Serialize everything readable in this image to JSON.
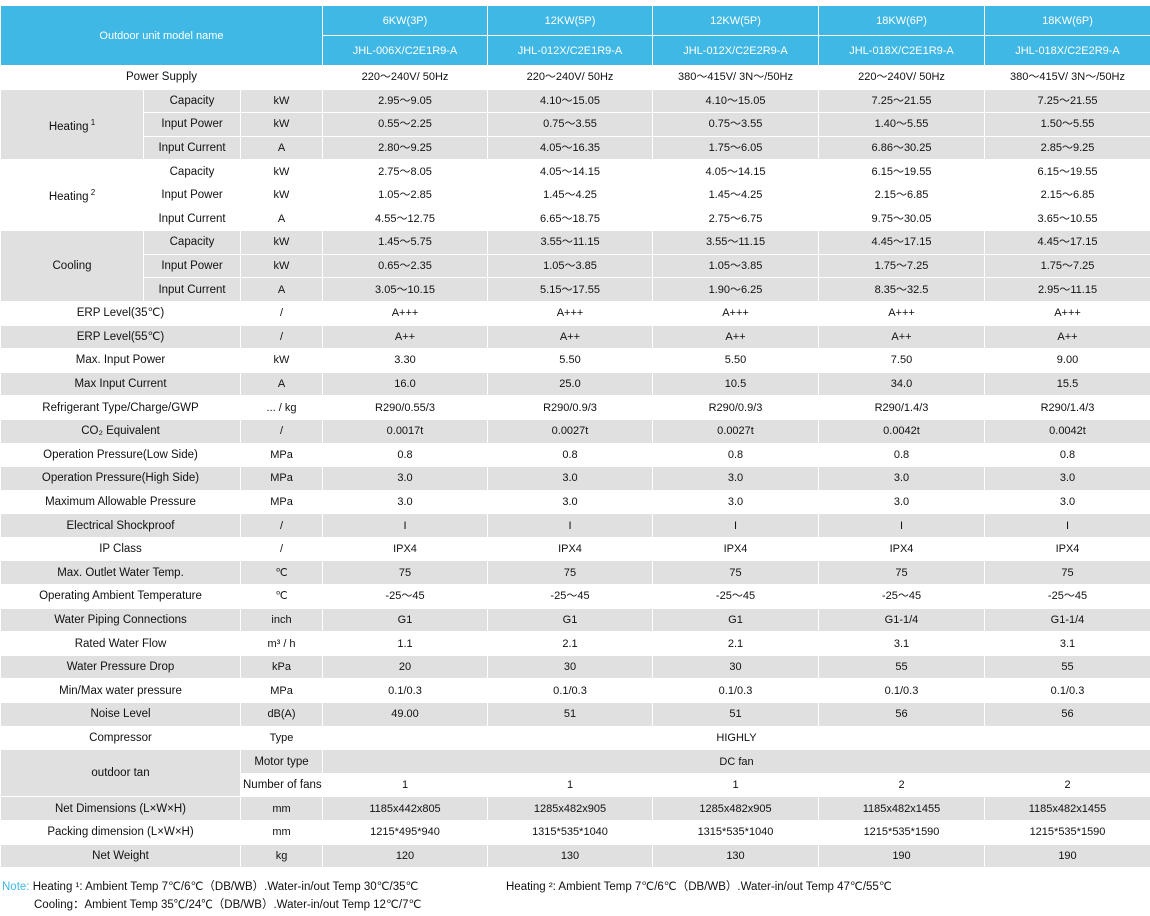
{
  "colors": {
    "header_blue": "#3fb8e6",
    "row_gray": "#e0e0e0",
    "row_white": "#ffffff"
  },
  "header": {
    "label": "Outdoor unit model name",
    "capacities": [
      "6KW(3P)",
      "12KW(5P)",
      "12KW(5P)",
      "18KW(6P)",
      "18KW(6P)"
    ],
    "models": [
      "JHL-006X/C2E1R9-A",
      "JHL-012X/C2E1R9-A",
      "JHL-012X/C2E2R9-A",
      "JHL-018X/C2E1R9-A",
      "JHL-018X/C2E2R9-A"
    ]
  },
  "power_supply": {
    "label": "Power Supply",
    "values": [
      "220～240V/ 50Hz",
      "220～240V/ 50Hz",
      "380～415V/ 3N～/50Hz",
      "220～240V/ 50Hz",
      "380～415V/ 3N～/50Hz"
    ]
  },
  "groups": [
    {
      "label": "Heating",
      "sup": "1",
      "rows": [
        {
          "name": "Capacity",
          "unit": "kW",
          "values": [
            "2.95～9.05",
            "4.10～15.05",
            "4.10～15.05",
            "7.25～21.55",
            "7.25～21.55"
          ]
        },
        {
          "name": "Input Power",
          "unit": "kW",
          "values": [
            "0.55～2.25",
            "0.75～3.55",
            "0.75～3.55",
            "1.40～5.55",
            "1.50～5.55"
          ]
        },
        {
          "name": "Input Current",
          "unit": "A",
          "values": [
            "2.80～9.25",
            "4.05～16.35",
            "1.75～6.05",
            "6.86～30.25",
            "2.85～9.25"
          ]
        }
      ]
    },
    {
      "label": "Heating",
      "sup": "2",
      "rows": [
        {
          "name": "Capacity",
          "unit": "kW",
          "values": [
            "2.75～8.05",
            "4.05～14.15",
            "4.05～14.15",
            "6.15～19.55",
            "6.15～19.55"
          ]
        },
        {
          "name": "Input Power",
          "unit": "kW",
          "values": [
            "1.05～2.85",
            "1.45～4.25",
            "1.45～4.25",
            "2.15～6.85",
            "2.15～6.85"
          ]
        },
        {
          "name": "Input Current",
          "unit": "A",
          "values": [
            "4.55～12.75",
            "6.65～18.75",
            "2.75～6.75",
            "9.75～30.05",
            "3.65～10.55"
          ]
        }
      ]
    },
    {
      "label": "Cooling",
      "sup": "",
      "rows": [
        {
          "name": "Capacity",
          "unit": "kW",
          "values": [
            "1.45～5.75",
            "3.55～11.15",
            "3.55～11.15",
            "4.45～17.15",
            "4.45～17.15"
          ]
        },
        {
          "name": "Input Power",
          "unit": "kW",
          "values": [
            "0.65～2.35",
            "1.05～3.85",
            "1.05～3.85",
            "1.75～7.25",
            "1.75～7.25"
          ]
        },
        {
          "name": "Input Current",
          "unit": "A",
          "values": [
            "3.05～10.15",
            "5.15～17.55",
            "1.90～6.25",
            "8.35～32.5",
            "2.95～11.15"
          ]
        }
      ]
    }
  ],
  "rows_a": [
    {
      "label": "ERP Level(35℃)",
      "unit": "/",
      "values": [
        "A+++",
        "A+++",
        "A+++",
        "A+++",
        "A+++"
      ]
    },
    {
      "label": "ERP Level(55℃)",
      "unit": "/",
      "values": [
        "A++",
        "A++",
        "A++",
        "A++",
        "A++"
      ]
    },
    {
      "label": "Max. Input Power",
      "unit": "kW",
      "values": [
        "3.30",
        "5.50",
        "5.50",
        "7.50",
        "9.00"
      ]
    },
    {
      "label": "Max Input Current",
      "unit": "A",
      "values": [
        "16.0",
        "25.0",
        "10.5",
        "34.0",
        "15.5"
      ]
    },
    {
      "label": "Refrigerant Type/Charge/GWP",
      "unit": "... / kg",
      "values": [
        "R290/0.55/3",
        "R290/0.9/3",
        "R290/0.9/3",
        "R290/1.4/3",
        "R290/1.4/3"
      ]
    },
    {
      "label": "CO₂ Equivalent",
      "unit": "/",
      "values": [
        "0.0017t",
        "0.0027t",
        "0.0027t",
        "0.0042t",
        "0.0042t"
      ]
    },
    {
      "label": "Operation Pressure(Low Side)",
      "unit": "MPa",
      "values": [
        "0.8",
        "0.8",
        "0.8",
        "0.8",
        "0.8"
      ]
    },
    {
      "label": "Operation Pressure(High Side)",
      "unit": "MPa",
      "values": [
        "3.0",
        "3.0",
        "3.0",
        "3.0",
        "3.0"
      ]
    },
    {
      "label": "Maximum Allowable Pressure",
      "unit": "MPa",
      "values": [
        "3.0",
        "3.0",
        "3.0",
        "3.0",
        "3.0"
      ]
    },
    {
      "label": "Electrical Shockproof",
      "unit": "/",
      "values": [
        "I",
        "I",
        "I",
        "I",
        "I"
      ]
    },
    {
      "label": "IP Class",
      "unit": "/",
      "values": [
        "IPX4",
        "IPX4",
        "IPX4",
        "IPX4",
        "IPX4"
      ]
    },
    {
      "label": "Max. Outlet Water Temp.",
      "unit": "℃",
      "values": [
        "75",
        "75",
        "75",
        "75",
        "75"
      ]
    },
    {
      "label": "Operating Ambient Temperature",
      "unit": "℃",
      "values": [
        "-25～45",
        "-25～45",
        "-25～45",
        "-25～45",
        "-25～45"
      ]
    },
    {
      "label": "Water Piping Connections",
      "unit": "inch",
      "values": [
        "G1",
        "G1",
        "G1",
        "G1-1/4",
        "G1-1/4"
      ]
    },
    {
      "label": "Rated Water Flow",
      "unit": "m³ / h",
      "values": [
        "1.1",
        "2.1",
        "2.1",
        "3.1",
        "3.1"
      ]
    },
    {
      "label": "Water Pressure Drop",
      "unit": "kPa",
      "values": [
        "20",
        "30",
        "30",
        "55",
        "55"
      ]
    },
    {
      "label": "Min/Max water pressure",
      "unit": "MPa",
      "values": [
        "0.1/0.3",
        "0.1/0.3",
        "0.1/0.3",
        "0.1/0.3",
        "0.1/0.3"
      ]
    },
    {
      "label": "Noise Level",
      "unit": "dB(A)",
      "values": [
        "49.00",
        "51",
        "51",
        "56",
        "56"
      ]
    }
  ],
  "compressor": {
    "label": "Compressor",
    "unit": "Type",
    "value": "HIGHLY"
  },
  "outdoor_fan": {
    "label": "outdoor tan",
    "motor_label": "Motor type",
    "motor_value": "DC fan",
    "fans_label": "Number of fans",
    "fans_values": [
      "1",
      "1",
      "1",
      "2",
      "2"
    ]
  },
  "rows_b": [
    {
      "label": "Net Dimensions (L×W×H)",
      "unit": "mm",
      "values": [
        "1185x442x805",
        "1285x482x905",
        "1285x482x905",
        "1185x482x1455",
        "1185x482x1455"
      ]
    },
    {
      "label": "Packing dimension (L×W×H)",
      "unit": "mm",
      "values": [
        "1215*495*940",
        "1315*535*1040",
        "1315*535*1040",
        "1215*535*1590",
        "1215*535*1590"
      ]
    },
    {
      "label": "Net Weight",
      "unit": "kg",
      "values": [
        "120",
        "130",
        "130",
        "190",
        "190"
      ]
    }
  ],
  "notes": {
    "label": "Note:",
    "heating1": "Heating ¹:  Ambient Temp 7℃/6℃（DB/WB）.Water-in/out Temp 30℃/35℃",
    "cooling": "Cooling：Ambient Temp 35℃/24℃（DB/WB）.Water-in/out Temp 12℃/7℃",
    "heating2": "Heating ²:  Ambient Temp 7℃/6℃（DB/WB）.Water-in/out Temp 47℃/55℃"
  }
}
